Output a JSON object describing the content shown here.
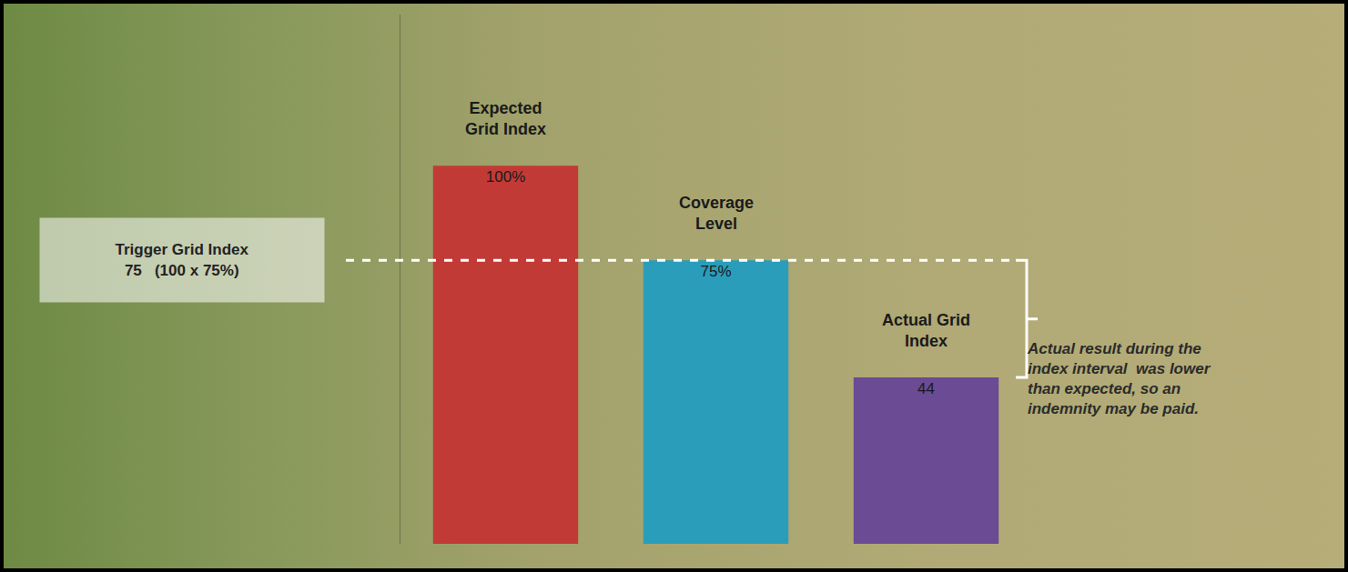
{
  "chart_data": {
    "type": "bar",
    "categories": [
      "Expected Grid Index",
      "Coverage Level",
      "Actual Grid Index"
    ],
    "values": [
      100,
      75,
      44
    ],
    "value_labels": [
      "100%",
      "75%",
      "44"
    ],
    "colors": [
      "#c23a36",
      "#2a9dbb",
      "#6a4b94"
    ],
    "data_labels": true,
    "tick_labels": false,
    "grid": false,
    "ylim": [
      0,
      140
    ],
    "reference_line": {
      "value": 75,
      "line_style": "dashed",
      "label": [
        "Trigger Grid Index",
        "75   (100 x 75%)"
      ]
    },
    "note": [
      "Actual result during the",
      "index interval  was lower",
      "than expected, so an",
      "indemnity may be paid."
    ]
  }
}
